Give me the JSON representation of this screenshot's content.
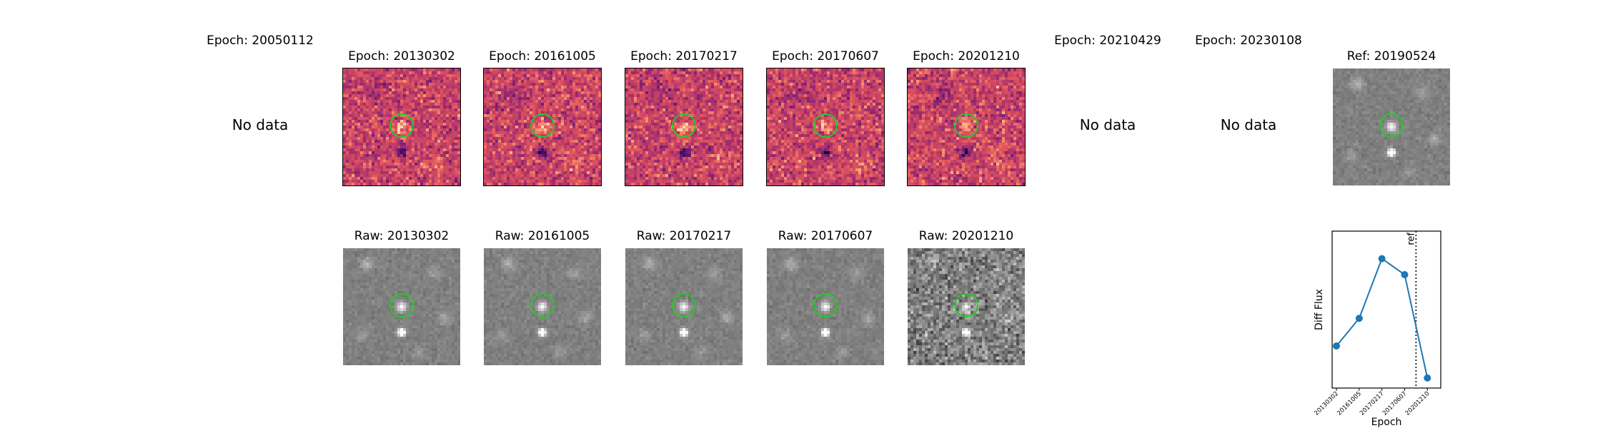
{
  "no_data_text": "No data",
  "diff_row": [
    {
      "title": "Epoch: 20050112",
      "has_data": false
    },
    {
      "title": "Epoch: 20130302",
      "has_data": true
    },
    {
      "title": "Epoch: 20161005",
      "has_data": true
    },
    {
      "title": "Epoch: 20170217",
      "has_data": true
    },
    {
      "title": "Epoch: 20170607",
      "has_data": true
    },
    {
      "title": "Epoch: 20201210",
      "has_data": true
    },
    {
      "title": "Epoch: 20210429",
      "has_data": false
    },
    {
      "title": "Epoch: 20230108",
      "has_data": false
    }
  ],
  "raw_row": [
    {
      "title": "Raw: 20130302"
    },
    {
      "title": "Raw: 20161005"
    },
    {
      "title": "Raw: 20170217"
    },
    {
      "title": "Raw: 20170607"
    },
    {
      "title": "Raw: 20201210"
    }
  ],
  "ref": {
    "title": "Ref: 20190524"
  },
  "colors": {
    "circle": "#22cc22",
    "line": "#1f77b4",
    "diff_dark": "#4a1470",
    "diff_light": "#fcc58e"
  },
  "chart_data": {
    "type": "line",
    "categories": [
      "20130302",
      "20161005",
      "20170217",
      "20170607",
      "20201210"
    ],
    "values": [
      0.25,
      0.44,
      0.85,
      0.74,
      0.03
    ],
    "ylabel": "Diff Flux",
    "xlabel": "Epoch",
    "yticks": false,
    "ylim": [
      0,
      1
    ],
    "ref_line": {
      "label": "ref",
      "date": "20190524",
      "style": "dotted"
    }
  }
}
